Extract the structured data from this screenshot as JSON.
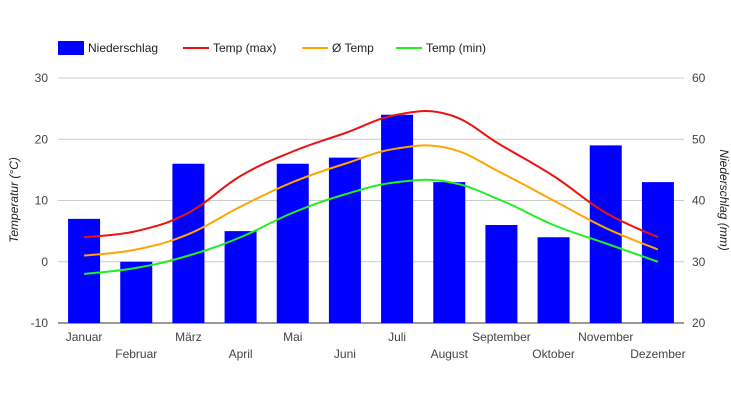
{
  "chart_data": {
    "type": "bar",
    "categories": [
      "Januar",
      "Februar",
      "März",
      "April",
      "Mai",
      "Juni",
      "Juli",
      "August",
      "September",
      "Oktober",
      "November",
      "Dezember"
    ],
    "legend_position": "top-left",
    "grid": true,
    "series": [
      {
        "name": "Niederschlag",
        "type": "bar",
        "axis": "right",
        "color": "#0000ff",
        "values": [
          37,
          30,
          46,
          35,
          46,
          47,
          54,
          43,
          36,
          34,
          49,
          43
        ]
      },
      {
        "name": "Temp (max)",
        "type": "line",
        "axis": "left",
        "color": "#ee1111",
        "values": [
          4,
          5,
          8,
          14,
          18,
          21,
          24,
          24,
          19,
          14,
          8,
          4
        ]
      },
      {
        "name": "Ø Temp",
        "type": "line",
        "axis": "left",
        "color": "#ffa500",
        "values": [
          1,
          2,
          4.5,
          9,
          13,
          16,
          18.5,
          18.5,
          14.5,
          10,
          5.5,
          2
        ]
      },
      {
        "name": "Temp (min)",
        "type": "line",
        "axis": "left",
        "color": "#22ee22",
        "values": [
          -2,
          -1,
          1,
          4,
          8,
          11,
          13,
          13,
          10,
          6,
          3,
          0
        ]
      }
    ],
    "ylabel_left": "Temperatur (°C)",
    "ylabel_right": "Niederschlag (mm)",
    "ylim_left": [
      -10,
      30
    ],
    "ylim_right": [
      20,
      60
    ],
    "yticks_left": [
      "30",
      "20",
      "10",
      "0",
      "-10"
    ],
    "yticks_right": [
      "60",
      "50",
      "40",
      "30",
      "20"
    ]
  }
}
